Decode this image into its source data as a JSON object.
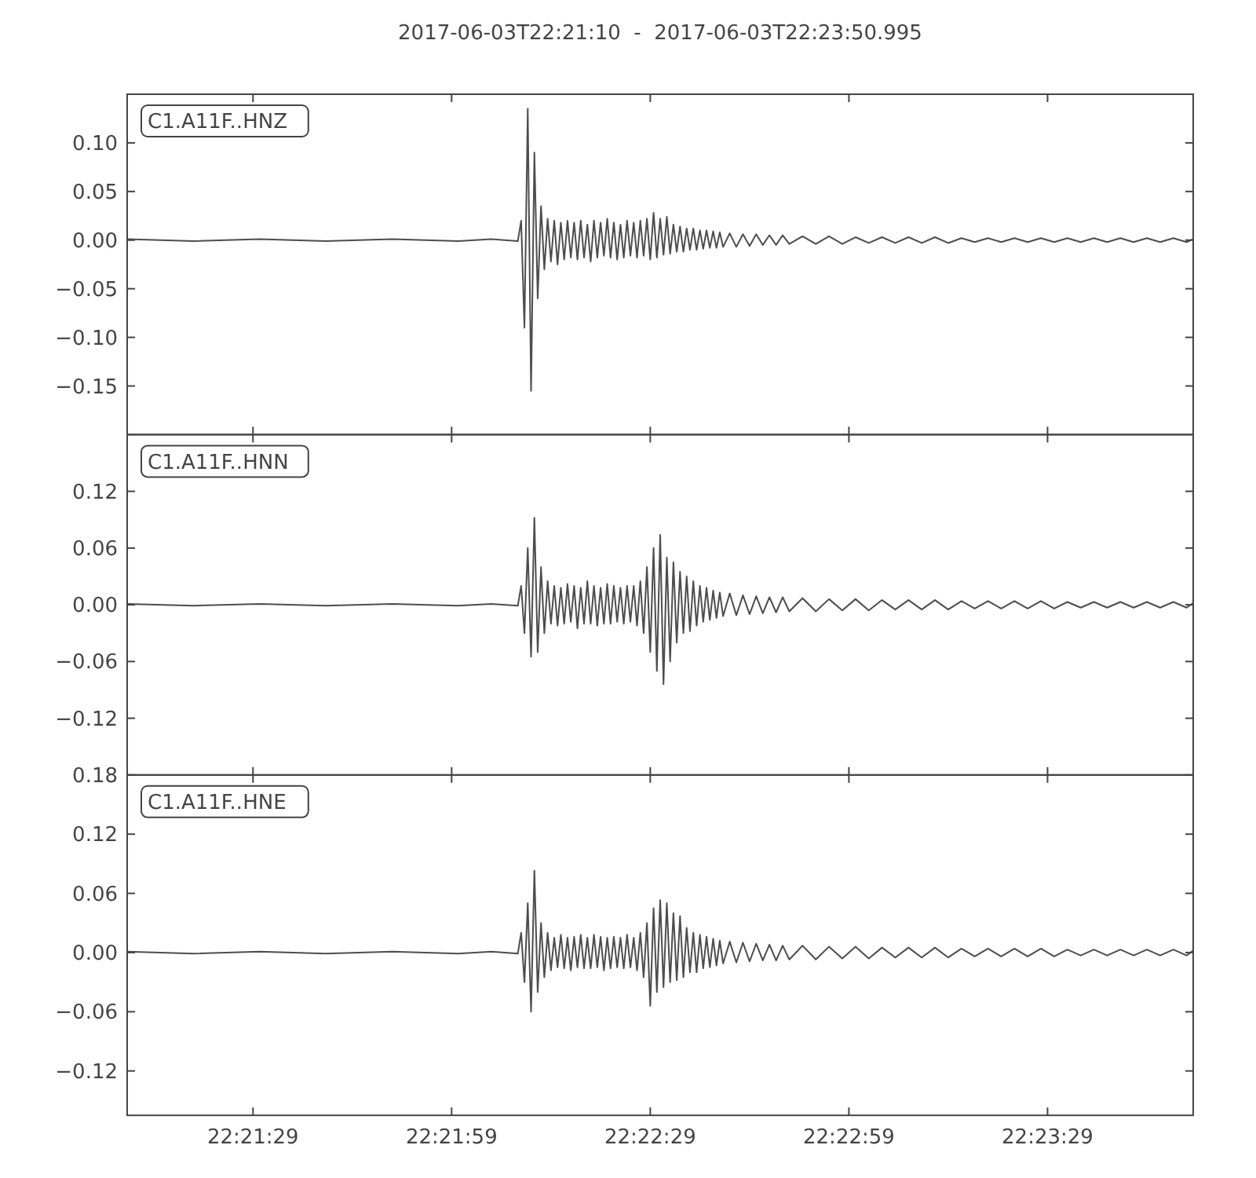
{
  "chart_data": [
    {
      "type": "line",
      "title": "2017-06-03T22:21:10  -  2017-06-03T22:23:50.995",
      "annotations": [
        "C1.A11F..HNZ"
      ],
      "color": "#4d4d4d",
      "tick_labels": "y",
      "xlim": [
        22.352778,
        22.397499
      ],
      "xticks": [
        {
          "value": 22.358056,
          "label": null
        },
        {
          "value": 22.366389,
          "label": null
        },
        {
          "value": 22.374722,
          "label": null
        },
        {
          "value": 22.383056,
          "label": null
        },
        {
          "value": 22.391389,
          "label": null
        }
      ],
      "ylim": [
        -0.2,
        0.15
      ],
      "yticks": [
        {
          "value": 0.1,
          "label": "0.10"
        },
        {
          "value": 0.05,
          "label": "0.05"
        },
        {
          "value": 0,
          "label": "0.00"
        },
        {
          "value": -0.05,
          "label": "−0.05"
        },
        {
          "value": -0.1,
          "label": "−0.10"
        },
        {
          "value": -0.15,
          "label": "−0.15"
        }
      ],
      "x": [
        22.352778,
        22.355556,
        22.358333,
        22.361111,
        22.363889,
        22.366667,
        22.368056,
        22.369167,
        22.369306,
        22.369444,
        22.369583,
        22.369722,
        22.369861,
        22.37,
        22.370139,
        22.370278,
        22.370417,
        22.370556,
        22.370694,
        22.370833,
        22.370972,
        22.371111,
        22.37125,
        22.371389,
        22.371528,
        22.371667,
        22.371806,
        22.371944,
        22.372083,
        22.372222,
        22.372361,
        22.3725,
        22.372639,
        22.372778,
        22.372917,
        22.373056,
        22.373194,
        22.373333,
        22.373472,
        22.373611,
        22.37375,
        22.373889,
        22.374028,
        22.374167,
        22.374306,
        22.374444,
        22.374583,
        22.374722,
        22.374861,
        22.375,
        22.375139,
        22.375278,
        22.375417,
        22.375556,
        22.375694,
        22.375833,
        22.375972,
        22.376111,
        22.37625,
        22.376389,
        22.376528,
        22.376667,
        22.376806,
        22.376944,
        22.377083,
        22.377222,
        22.377361,
        22.3775,
        22.377639,
        22.377778,
        22.378056,
        22.378333,
        22.378611,
        22.378889,
        22.379167,
        22.379444,
        22.379722,
        22.38,
        22.380278,
        22.380556,
        22.381111,
        22.381667,
        22.382222,
        22.382778,
        22.383333,
        22.383889,
        22.384444,
        22.385,
        22.385556,
        22.386111,
        22.386667,
        22.387222,
        22.387778,
        22.388333,
        22.388889,
        22.389444,
        22.39,
        22.390556,
        22.391111,
        22.391667,
        22.392222,
        22.392778,
        22.393333,
        22.393889,
        22.394444,
        22.395,
        22.395556,
        22.396111,
        22.396667,
        22.397222,
        22.397499
      ],
      "values": [
        0.001,
        -0.001,
        0.001,
        -0.001,
        0.001,
        -0.001,
        0.001,
        -0.001,
        0.02,
        -0.09,
        0.135,
        -0.155,
        0.09,
        -0.06,
        0.035,
        -0.03,
        0.022,
        -0.022,
        0.02,
        -0.025,
        0.018,
        -0.02,
        0.02,
        -0.018,
        0.018,
        -0.02,
        0.02,
        -0.018,
        0.016,
        -0.022,
        0.02,
        -0.018,
        0.018,
        -0.016,
        0.022,
        -0.018,
        0.018,
        -0.02,
        0.016,
        -0.018,
        0.02,
        -0.016,
        0.018,
        -0.018,
        0.02,
        -0.016,
        0.022,
        -0.02,
        0.028,
        -0.018,
        0.022,
        -0.015,
        0.024,
        -0.014,
        0.016,
        -0.012,
        0.014,
        -0.012,
        0.012,
        -0.01,
        0.012,
        -0.01,
        0.01,
        -0.009,
        0.01,
        -0.008,
        0.009,
        -0.008,
        0.008,
        -0.007,
        0.007,
        -0.007,
        0.006,
        -0.006,
        0.006,
        -0.005,
        0.005,
        -0.005,
        0.005,
        -0.004,
        0.004,
        -0.004,
        0.004,
        -0.004,
        0.003,
        -0.003,
        0.003,
        -0.003,
        0.003,
        -0.003,
        0.003,
        -0.003,
        0.002,
        -0.002,
        0.002,
        -0.002,
        0.002,
        -0.002,
        0.002,
        -0.002,
        0.002,
        -0.002,
        0.002,
        -0.002,
        0.002,
        -0.002,
        0.002,
        -0.002,
        0.002,
        -0.002,
        0.001
      ]
    },
    {
      "type": "line",
      "annotations": [
        "C1.A11F..HNN"
      ],
      "color": "#4d4d4d",
      "tick_labels": "y",
      "xlim": [
        22.352778,
        22.397499
      ],
      "xticks": [
        {
          "value": 22.358056,
          "label": null
        },
        {
          "value": 22.366389,
          "label": null
        },
        {
          "value": 22.374722,
          "label": null
        },
        {
          "value": 22.383056,
          "label": null
        },
        {
          "value": 22.391389,
          "label": null
        }
      ],
      "ylim": [
        -0.18,
        0.18
      ],
      "yticks": [
        {
          "value": 0.12,
          "label": "0.12"
        },
        {
          "value": 0.06,
          "label": "0.06"
        },
        {
          "value": 0,
          "label": "0.00"
        },
        {
          "value": -0.06,
          "label": "−0.06"
        },
        {
          "value": -0.12,
          "label": "−0.12"
        }
      ],
      "x": [
        22.352778,
        22.355556,
        22.358333,
        22.361111,
        22.363889,
        22.366667,
        22.368056,
        22.369167,
        22.369306,
        22.369444,
        22.369583,
        22.369722,
        22.369861,
        22.37,
        22.370139,
        22.370278,
        22.370417,
        22.370556,
        22.370694,
        22.370833,
        22.370972,
        22.371111,
        22.37125,
        22.371389,
        22.371528,
        22.371667,
        22.371806,
        22.371944,
        22.372083,
        22.372222,
        22.372361,
        22.3725,
        22.372639,
        22.372778,
        22.372917,
        22.373056,
        22.373194,
        22.373333,
        22.373472,
        22.373611,
        22.37375,
        22.373889,
        22.374028,
        22.374167,
        22.374306,
        22.374444,
        22.374583,
        22.374722,
        22.374861,
        22.375,
        22.375139,
        22.375278,
        22.375417,
        22.375556,
        22.375694,
        22.375833,
        22.375972,
        22.376111,
        22.37625,
        22.376389,
        22.376528,
        22.376667,
        22.376806,
        22.376944,
        22.377083,
        22.377222,
        22.377361,
        22.3775,
        22.377639,
        22.377778,
        22.378056,
        22.378333,
        22.378611,
        22.378889,
        22.379167,
        22.379444,
        22.379722,
        22.38,
        22.380278,
        22.380556,
        22.381111,
        22.381667,
        22.382222,
        22.382778,
        22.383333,
        22.383889,
        22.384444,
        22.385,
        22.385556,
        22.386111,
        22.386667,
        22.387222,
        22.387778,
        22.388333,
        22.388889,
        22.389444,
        22.39,
        22.390556,
        22.391111,
        22.391667,
        22.392222,
        22.392778,
        22.393333,
        22.393889,
        22.394444,
        22.395,
        22.395556,
        22.396111,
        22.396667,
        22.397222,
        22.397499
      ],
      "values": [
        0.001,
        -0.001,
        0.001,
        -0.001,
        0.001,
        -0.001,
        0.001,
        -0.001,
        0.02,
        -0.03,
        0.06,
        -0.055,
        0.092,
        -0.05,
        0.04,
        -0.03,
        0.025,
        -0.02,
        0.02,
        -0.022,
        0.018,
        -0.02,
        0.022,
        -0.018,
        0.02,
        -0.025,
        0.018,
        -0.02,
        0.025,
        -0.02,
        0.02,
        -0.022,
        0.018,
        -0.02,
        0.022,
        -0.02,
        0.02,
        -0.018,
        0.018,
        -0.02,
        0.02,
        -0.018,
        0.02,
        -0.022,
        0.025,
        -0.03,
        0.04,
        -0.05,
        0.06,
        -0.07,
        0.074,
        -0.084,
        0.05,
        -0.06,
        0.045,
        -0.04,
        0.035,
        -0.03,
        0.03,
        -0.028,
        0.025,
        -0.022,
        0.02,
        -0.018,
        0.018,
        -0.016,
        0.015,
        -0.014,
        0.013,
        -0.012,
        0.012,
        -0.011,
        0.01,
        -0.01,
        0.009,
        -0.009,
        0.008,
        -0.008,
        0.008,
        -0.007,
        0.007,
        -0.007,
        0.006,
        -0.006,
        0.006,
        -0.006,
        0.005,
        -0.005,
        0.005,
        -0.005,
        0.005,
        -0.005,
        0.004,
        -0.004,
        0.004,
        -0.004,
        0.004,
        -0.004,
        0.004,
        -0.004,
        0.003,
        -0.003,
        0.003,
        -0.003,
        0.003,
        -0.003,
        0.003,
        -0.003,
        0.003,
        -0.003,
        0.002
      ]
    },
    {
      "type": "line",
      "annotations": [
        "C1.A11F..HNE"
      ],
      "color": "#4d4d4d",
      "xlim": [
        22.352778,
        22.397499
      ],
      "xticks": [
        {
          "value": 22.358056,
          "label": "22:21:29"
        },
        {
          "value": 22.366389,
          "label": "22:21:59"
        },
        {
          "value": 22.374722,
          "label": "22:22:29"
        },
        {
          "value": 22.383056,
          "label": "22:22:59"
        },
        {
          "value": 22.391389,
          "label": "22:23:29"
        }
      ],
      "ylim": [
        -0.165,
        0.18
      ],
      "yticks": [
        {
          "value": 0.18,
          "label": "0.18"
        },
        {
          "value": 0.12,
          "label": "0.12"
        },
        {
          "value": 0.06,
          "label": "0.06"
        },
        {
          "value": 0,
          "label": "0.00"
        },
        {
          "value": -0.06,
          "label": "−0.06"
        },
        {
          "value": -0.12,
          "label": "−0.12"
        }
      ],
      "x": [
        22.352778,
        22.355556,
        22.358333,
        22.361111,
        22.363889,
        22.366667,
        22.368056,
        22.369167,
        22.369306,
        22.369444,
        22.369583,
        22.369722,
        22.369861,
        22.37,
        22.370139,
        22.370278,
        22.370417,
        22.370556,
        22.370694,
        22.370833,
        22.370972,
        22.371111,
        22.37125,
        22.371389,
        22.371528,
        22.371667,
        22.371806,
        22.371944,
        22.372083,
        22.372222,
        22.372361,
        22.3725,
        22.372639,
        22.372778,
        22.372917,
        22.373056,
        22.373194,
        22.373333,
        22.373472,
        22.373611,
        22.37375,
        22.373889,
        22.374028,
        22.374167,
        22.374306,
        22.374444,
        22.374583,
        22.374722,
        22.374861,
        22.375,
        22.375139,
        22.375278,
        22.375417,
        22.375556,
        22.375694,
        22.375833,
        22.375972,
        22.376111,
        22.37625,
        22.376389,
        22.376528,
        22.376667,
        22.376806,
        22.376944,
        22.377083,
        22.377222,
        22.377361,
        22.3775,
        22.377639,
        22.377778,
        22.378056,
        22.378333,
        22.378611,
        22.378889,
        22.379167,
        22.379444,
        22.379722,
        22.38,
        22.380278,
        22.380556,
        22.381111,
        22.381667,
        22.382222,
        22.382778,
        22.383333,
        22.383889,
        22.384444,
        22.385,
        22.385556,
        22.386111,
        22.386667,
        22.387222,
        22.387778,
        22.388333,
        22.388889,
        22.389444,
        22.39,
        22.390556,
        22.391111,
        22.391667,
        22.392222,
        22.392778,
        22.393333,
        22.393889,
        22.394444,
        22.395,
        22.395556,
        22.396111,
        22.396667,
        22.397222,
        22.397499
      ],
      "values": [
        0.001,
        -0.001,
        0.001,
        -0.001,
        0.001,
        -0.001,
        0.001,
        -0.001,
        0.02,
        -0.03,
        0.05,
        -0.06,
        0.083,
        -0.04,
        0.03,
        -0.025,
        0.02,
        -0.018,
        0.015,
        -0.015,
        0.018,
        -0.016,
        0.015,
        -0.018,
        0.016,
        -0.015,
        0.018,
        -0.016,
        0.015,
        -0.016,
        0.018,
        -0.015,
        0.016,
        -0.018,
        0.015,
        -0.016,
        0.016,
        -0.015,
        0.015,
        -0.016,
        0.018,
        -0.015,
        0.015,
        -0.018,
        0.02,
        -0.025,
        0.03,
        -0.054,
        0.045,
        -0.04,
        0.053,
        -0.035,
        0.05,
        -0.03,
        0.04,
        -0.028,
        0.037,
        -0.025,
        0.025,
        -0.02,
        0.02,
        -0.02,
        0.018,
        -0.016,
        0.016,
        -0.015,
        0.014,
        -0.013,
        0.012,
        -0.011,
        0.011,
        -0.01,
        0.01,
        -0.009,
        0.009,
        -0.008,
        0.008,
        -0.008,
        0.007,
        -0.007,
        0.007,
        -0.007,
        0.006,
        -0.006,
        0.006,
        -0.006,
        0.005,
        -0.005,
        0.005,
        -0.005,
        0.005,
        -0.005,
        0.004,
        -0.004,
        0.004,
        -0.004,
        0.004,
        -0.004,
        0.004,
        -0.004,
        0.003,
        -0.003,
        0.003,
        -0.003,
        0.003,
        -0.003,
        0.003,
        -0.003,
        0.003,
        -0.003,
        0.002
      ]
    }
  ]
}
